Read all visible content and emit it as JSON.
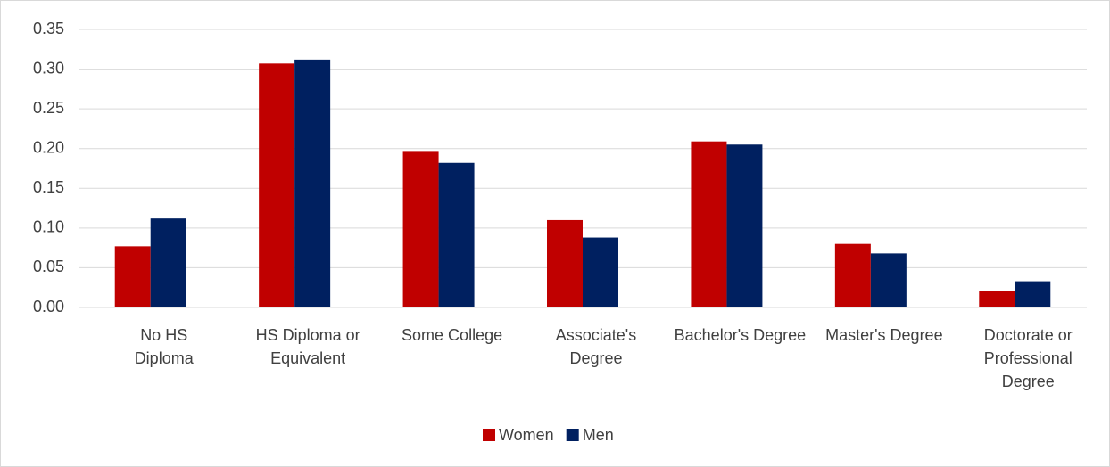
{
  "chart_data": {
    "type": "bar",
    "categories": [
      "No HS Diploma",
      "HS Diploma or Equivalent",
      "Some College",
      "Associate's Degree",
      "Bachelor's Degree",
      "Master's Degree",
      "Doctorate or Professional Degree"
    ],
    "series": [
      {
        "name": "Women",
        "color": "#c00000",
        "values": [
          0.077,
          0.307,
          0.197,
          0.11,
          0.209,
          0.08,
          0.021
        ]
      },
      {
        "name": "Men",
        "color": "#002060",
        "values": [
          0.112,
          0.312,
          0.182,
          0.088,
          0.205,
          0.068,
          0.033
        ]
      }
    ],
    "ylim": [
      0,
      0.35
    ],
    "yticks": [
      {
        "value": 0,
        "label": "0.00"
      },
      0.05,
      {
        "value": 0.1,
        "label": "0.10"
      },
      0.15,
      {
        "value": 0.2,
        "label": "0.20"
      },
      0.25,
      {
        "value": 0.3,
        "label": "0.30"
      },
      0.35
    ],
    "grid": true,
    "legend": "bottom"
  }
}
